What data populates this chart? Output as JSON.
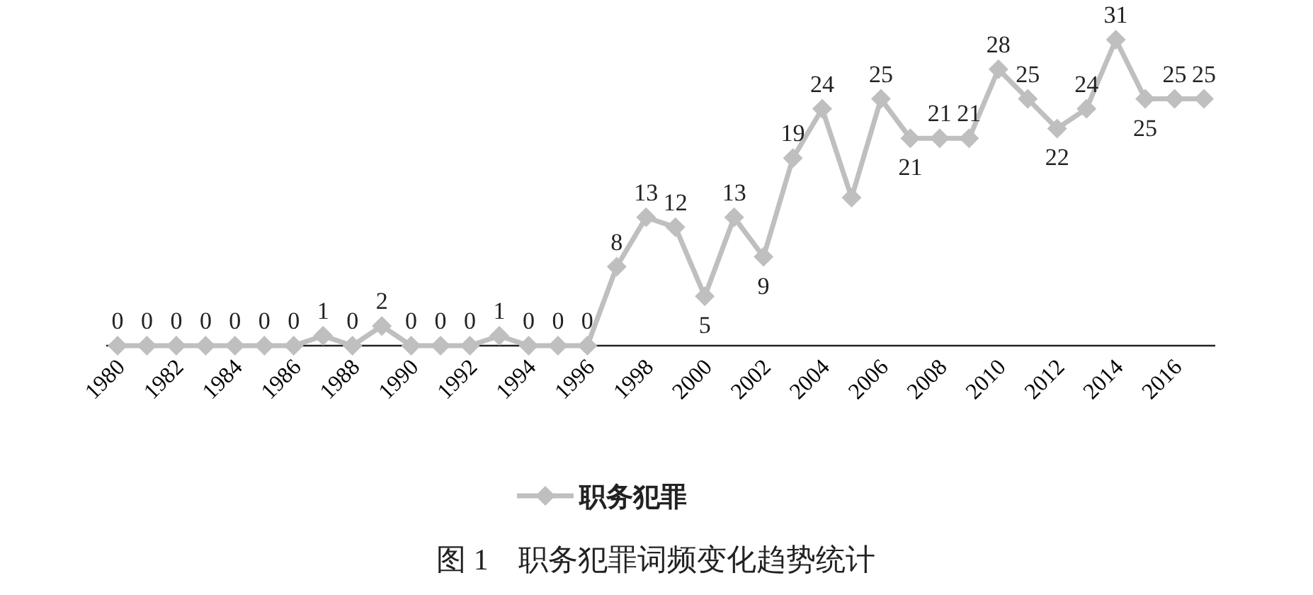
{
  "chart_data": {
    "type": "line",
    "title": "图 1　职务犯罪词频变化趋势统计",
    "categories": [
      "1980",
      null,
      "1982",
      null,
      "1984",
      null,
      "1986",
      null,
      "1988",
      null,
      "1990",
      null,
      "1992",
      null,
      "1994",
      null,
      "1996",
      null,
      "1998",
      null,
      "2000",
      null,
      "2002",
      null,
      "2004",
      null,
      "2006",
      null,
      "2008",
      null,
      "2010",
      null,
      "2012",
      null,
      "2014",
      null,
      "2016",
      null
    ],
    "series": [
      {
        "name": "职务犯罪",
        "color": "#bfbfbf",
        "values": [
          0,
          0,
          0,
          0,
          0,
          0,
          0,
          1,
          0,
          2,
          0,
          0,
          0,
          1,
          0,
          0,
          0,
          8,
          13,
          12,
          5,
          13,
          9,
          19,
          24,
          15,
          25,
          21,
          21,
          21,
          28,
          25,
          22,
          24,
          31,
          25,
          25,
          25
        ],
        "value_labels": [
          "0",
          "0",
          "0",
          "0",
          "0",
          "0",
          "0",
          "1",
          "0",
          "2",
          "0",
          "0",
          "0",
          "1",
          "0",
          "0",
          "0",
          "8",
          "13",
          "12",
          "5",
          "13",
          "9",
          "19",
          "24",
          null,
          "25",
          "21",
          "21",
          "21",
          "28",
          "25",
          "22",
          "24",
          "31",
          "25",
          "25",
          "25"
        ]
      }
    ],
    "marker": "diamond",
    "legend": "bottom"
  }
}
